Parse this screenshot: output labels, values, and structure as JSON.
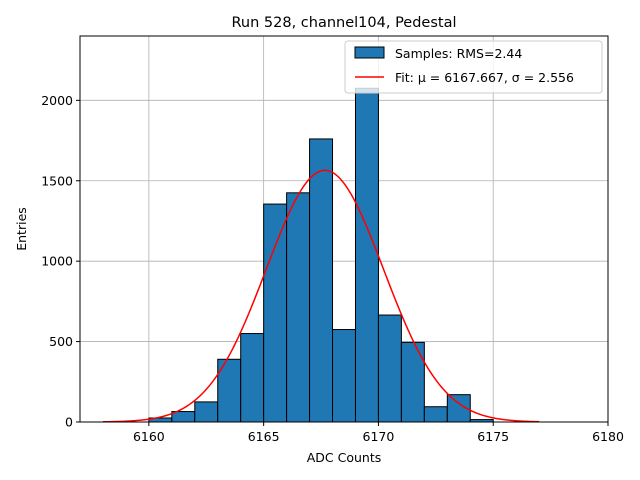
{
  "chart_data": {
    "type": "bar",
    "title": "Run 528, channel104, Pedestal",
    "xlabel": "ADC Counts",
    "ylabel": "Entries",
    "xlim": [
      6157,
      6180
    ],
    "ylim": [
      0,
      2400
    ],
    "xticks": [
      6160,
      6165,
      6170,
      6175,
      6180
    ],
    "yticks": [
      0,
      500,
      1000,
      1500,
      2000
    ],
    "grid": true,
    "legend_position": "top-right",
    "histogram": {
      "name": "Samples: RMS=2.44",
      "color": "#1f77b4",
      "bin_edges": [
        6160,
        6161,
        6162,
        6163,
        6164,
        6165,
        6166,
        6167,
        6168,
        6169,
        6170,
        6171,
        6172,
        6173,
        6174,
        6175
      ],
      "counts": [
        25,
        65,
        125,
        390,
        550,
        1355,
        1425,
        1760,
        575,
        2075,
        665,
        495,
        95,
        170,
        15
      ]
    },
    "fit": {
      "name": "Fit: μ = 6167.667, σ = 2.556",
      "color": "#ff0000",
      "mu": 6167.667,
      "sigma": 2.556,
      "amplitude": 1565,
      "x_range": [
        6158,
        6177
      ]
    }
  }
}
